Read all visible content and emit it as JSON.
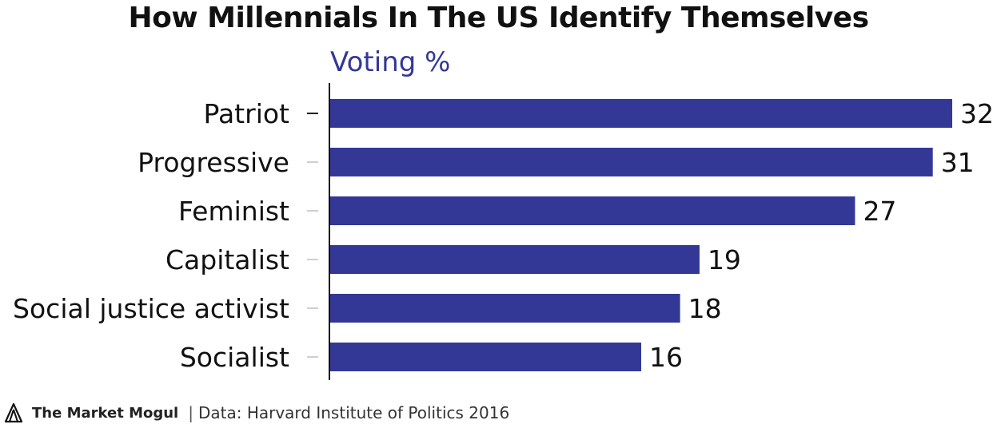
{
  "header": {
    "title": "How Millennials In The US Identify Themselves",
    "subtitle": "Voting %"
  },
  "colors": {
    "bar": "#333896",
    "subtitle": "#333896",
    "axis": "#111111",
    "tick": "#cfcfcf"
  },
  "chart_data": {
    "type": "bar",
    "orientation": "horizontal",
    "title": "How Millennials In The US Identify Themselves",
    "subtitle": "Voting %",
    "categories": [
      "Patriot",
      "Progressive",
      "Feminist",
      "Capitalist",
      "Social justice activist",
      "Socialist"
    ],
    "values": [
      32,
      31,
      27,
      19,
      18,
      16
    ],
    "xlim": [
      0,
      32
    ],
    "grid": false,
    "data_labels": true
  },
  "footer": {
    "brand": "The Market Mogul",
    "separator": "|",
    "source": "Data: Harvard Institute of Politics 2016",
    "logo_icon": "market-mogul-logo-icon"
  }
}
